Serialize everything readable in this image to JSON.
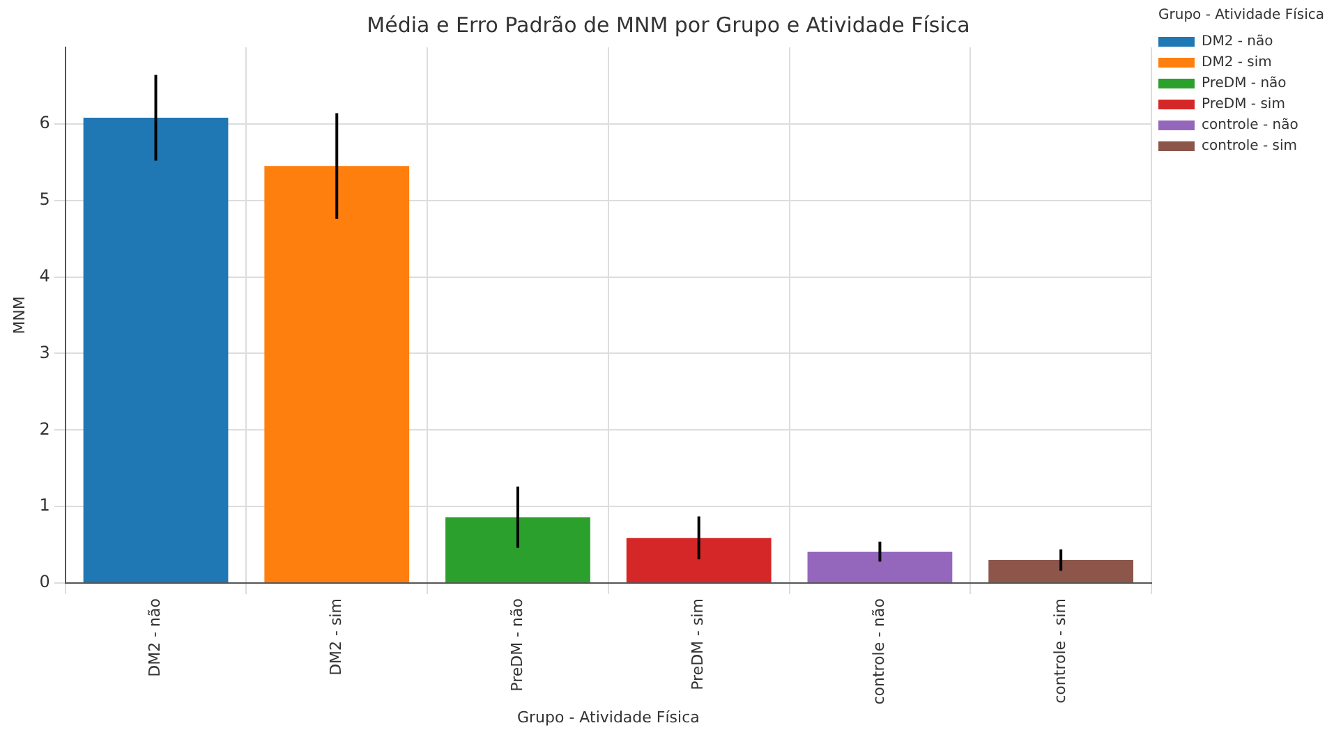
{
  "chart_data": {
    "type": "bar",
    "title": "Média e Erro Padrão de MNM por Grupo e Atividade Física",
    "xlabel": "Grupo - Atividade Física",
    "ylabel": "MNM",
    "legend_title": "Grupo - Atividade Física",
    "categories": [
      "DM2 - não",
      "DM2 - sim",
      "PreDM - não",
      "PreDM - sim",
      "controle - não",
      "controle - sim"
    ],
    "series": [
      {
        "name": "DM2 - não",
        "color": "#1f77b4",
        "values": [
          6.08,
          null,
          null,
          null,
          null,
          null
        ],
        "errors": [
          0.56,
          null,
          null,
          null,
          null,
          null
        ]
      },
      {
        "name": "DM2 - sim",
        "color": "#ff7f0e",
        "values": [
          null,
          5.45,
          null,
          null,
          null,
          null
        ],
        "errors": [
          null,
          0.69,
          null,
          null,
          null,
          null
        ]
      },
      {
        "name": "PreDM - não",
        "color": "#2ca02c",
        "values": [
          null,
          null,
          0.86,
          null,
          null,
          null
        ],
        "errors": [
          null,
          null,
          0.4,
          null,
          null,
          null
        ]
      },
      {
        "name": "PreDM - sim",
        "color": "#d62728",
        "values": [
          null,
          null,
          null,
          0.59,
          null,
          null
        ],
        "errors": [
          null,
          null,
          null,
          0.28,
          null,
          null
        ]
      },
      {
        "name": "controle - não",
        "color": "#9467bd",
        "values": [
          null,
          null,
          null,
          null,
          0.41,
          null
        ],
        "errors": [
          null,
          null,
          null,
          null,
          0.13,
          null
        ]
      },
      {
        "name": "controle - sim",
        "color": "#8c564b",
        "values": [
          null,
          null,
          null,
          null,
          null,
          0.3
        ],
        "errors": [
          null,
          null,
          null,
          null,
          null,
          0.14
        ]
      }
    ],
    "ylim": [
      0,
      7
    ],
    "yticks": [
      0,
      1,
      2,
      3,
      4,
      5,
      6
    ],
    "grid": true,
    "legend": "top right"
  }
}
